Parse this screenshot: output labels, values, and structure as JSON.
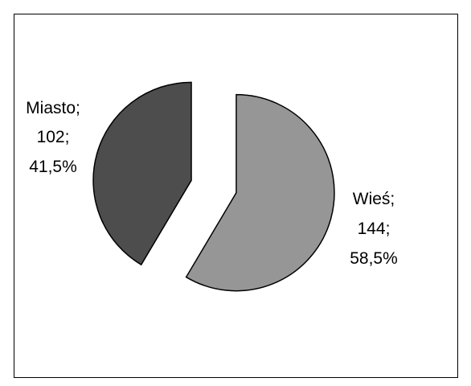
{
  "chart_data": {
    "type": "pie",
    "title": "",
    "exploded": true,
    "slices": [
      {
        "label": "Wieś;",
        "value_text": "144;",
        "percent_text": "58,5%",
        "value": 144,
        "percent": 58.5,
        "color": "#969696"
      },
      {
        "label": "Miasto;",
        "value_text": "102;",
        "percent_text": "41,5%",
        "value": 102,
        "percent": 41.5,
        "color": "#4d4d4d"
      }
    ]
  }
}
